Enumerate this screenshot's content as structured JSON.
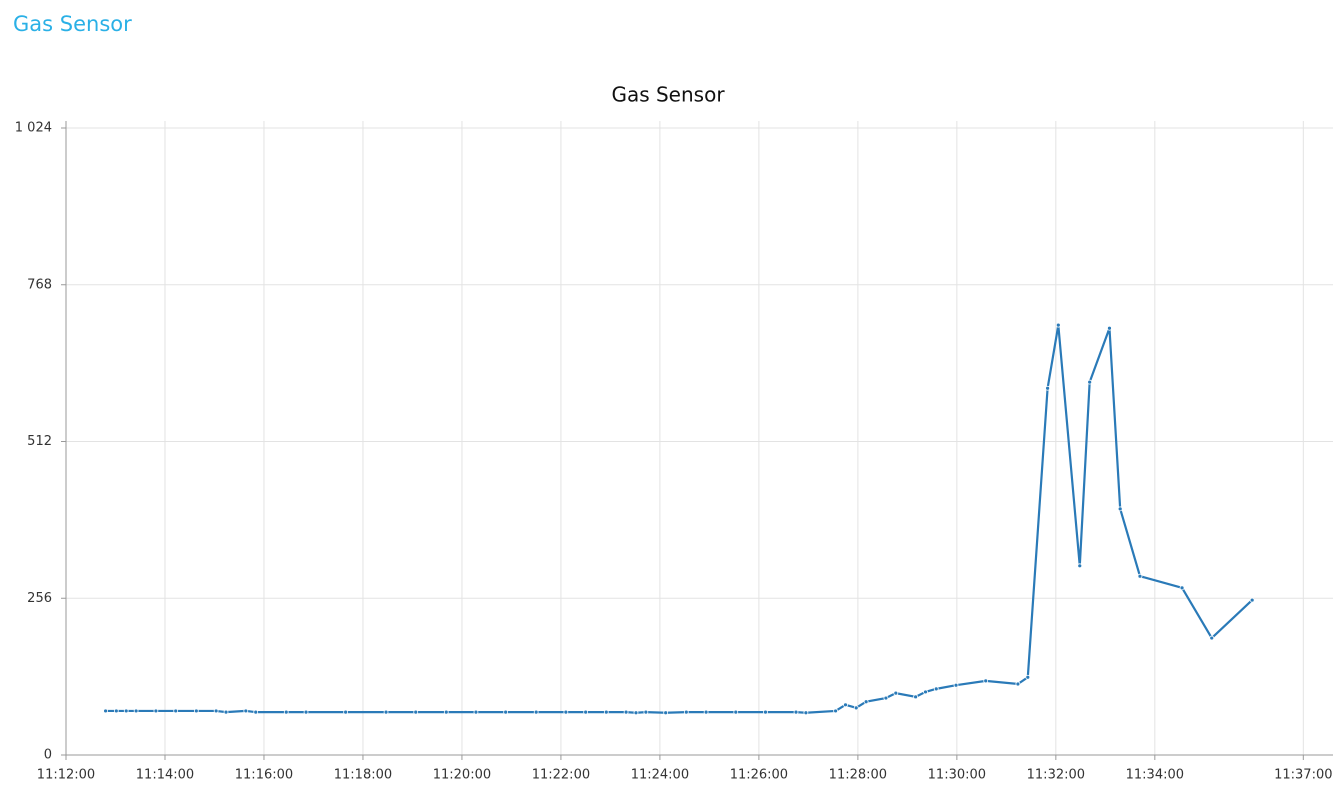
{
  "header": {
    "title": "Gas Sensor"
  },
  "chart_data": {
    "type": "line",
    "title": "Gas Sensor",
    "x": [
      "11:12:48",
      "11:13:01",
      "11:13:13",
      "11:13:25",
      "11:13:49",
      "11:14:13",
      "11:14:38",
      "11:15:02",
      "11:15:14",
      "11:15:38",
      "11:15:50",
      "11:16:27",
      "11:16:51",
      "11:17:39",
      "11:18:28",
      "11:19:04",
      "11:19:41",
      "11:20:17",
      "11:20:53",
      "11:21:30",
      "11:22:06",
      "11:22:30",
      "11:22:55",
      "11:23:19",
      "11:23:31",
      "11:23:43",
      "11:24:07",
      "11:24:32",
      "11:24:56",
      "11:25:32",
      "11:26:08",
      "11:26:45",
      "11:26:57",
      "11:27:33",
      "11:27:45",
      "11:27:58",
      "11:28:10",
      "11:28:34",
      "11:28:46",
      "11:29:10",
      "11:29:22",
      "11:29:35",
      "11:29:59",
      "11:30:35",
      "11:31:14",
      "11:31:26",
      "11:31:50",
      "11:32:03",
      "11:32:29",
      "11:32:41",
      "11:33:05",
      "11:33:18",
      "11:33:42",
      "11:34:33",
      "11:35:09",
      "11:35:58"
    ],
    "series": [
      {
        "color": "#2a7ab8",
        "values": [
          72,
          72,
          72,
          72,
          72,
          72,
          72,
          72,
          70,
          72,
          70,
          70,
          70,
          70,
          70,
          70,
          70,
          70,
          70,
          70,
          70,
          70,
          70,
          70,
          69,
          70,
          69,
          70,
          70,
          70,
          70,
          70,
          69,
          72,
          82,
          77,
          87,
          93,
          101,
          95,
          103,
          108,
          114,
          121,
          116,
          127,
          599,
          702,
          309,
          609,
          697,
          402,
          292,
          273,
          191,
          253
        ]
      }
    ],
    "xlim": [
      "11:12:00",
      "11:37:36"
    ],
    "xticks": [
      "11:12:00",
      "11:14:00",
      "11:16:00",
      "11:18:00",
      "11:20:00",
      "11:22:00",
      "11:24:00",
      "11:26:00",
      "11:28:00",
      "11:30:00",
      "11:32:00",
      "11:34:00",
      "11:37:00"
    ],
    "ylim": [
      0,
      1024
    ],
    "yticks": [
      0,
      256,
      512,
      768,
      {
        "value": 1024,
        "label": "1 024"
      }
    ],
    "grid": true
  }
}
